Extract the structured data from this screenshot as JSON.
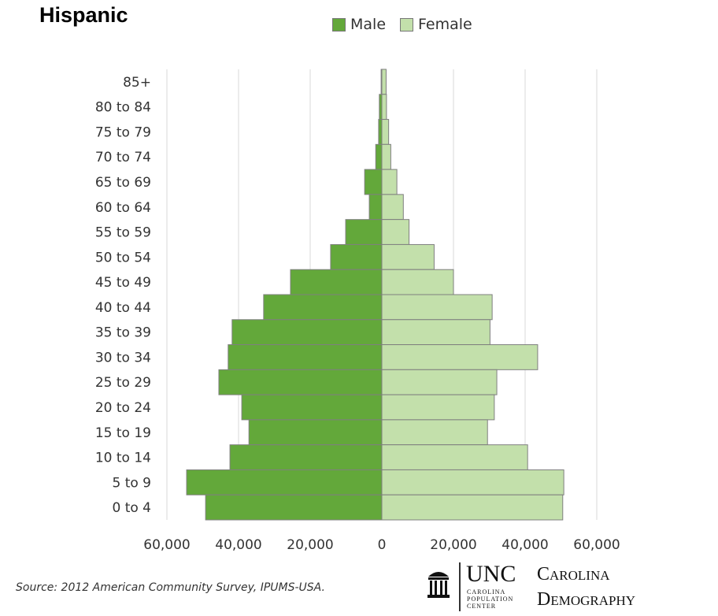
{
  "chart_data": {
    "type": "bar",
    "orientation": "horizontal-population-pyramid",
    "title": "Hispanic",
    "categories": [
      "85+",
      "80 to 84",
      "75 to 79",
      "70 to 74",
      "65 to 69",
      "60 to 64",
      "55 to 59",
      "50 to 54",
      "45 to 49",
      "40 to 44",
      "35 to 39",
      "30 to 34",
      "25 to 29",
      "20 to 24",
      "15 to 19",
      "10 to 14",
      "5 to 9",
      "0 to 4"
    ],
    "series": [
      {
        "name": "Male",
        "color": "#63a83a",
        "values": [
          200,
          700,
          900,
          1700,
          4800,
          3500,
          10100,
          14300,
          25500,
          33000,
          41800,
          42900,
          45500,
          39100,
          37100,
          42400,
          54500,
          49200
        ]
      },
      {
        "name": "Female",
        "color": "#c3e0ab",
        "values": [
          1200,
          1300,
          1900,
          2500,
          4200,
          6000,
          7600,
          14600,
          20000,
          30800,
          30200,
          43500,
          32100,
          31400,
          29500,
          40700,
          50800,
          50500
        ]
      }
    ],
    "xticks": [
      "60,000",
      "40,000",
      "20,000",
      "0",
      "20,000",
      "40,000",
      "60,000"
    ],
    "xlim": [
      -60000,
      60000
    ],
    "grid": true,
    "legend": "top"
  },
  "source": "Source: 2012 American Community Survey, IPUMS-USA.",
  "logo": {
    "unc": "UNC",
    "cpc": [
      "CAROLINA",
      "POPULATION",
      "CENTER"
    ],
    "carolina": "Carolina",
    "demography": "Demography"
  }
}
